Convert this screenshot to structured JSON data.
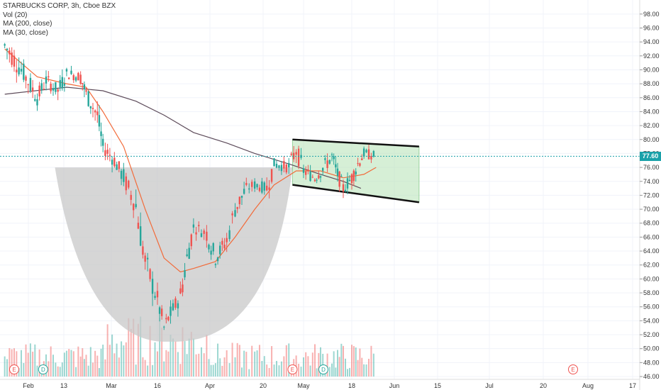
{
  "legend": {
    "title": "STARBUCKS CORP, 3h, Cboe BZX",
    "vol": "Vol (20)",
    "ma200": "MA (200, close)",
    "ma30": "MA (30, close)"
  },
  "current_price": "77.60",
  "colors": {
    "up": "#26a69a",
    "down": "#ef5350",
    "ma30": "#f26b3a",
    "ma200": "#5d4b5a",
    "cup": "#c8c8c8",
    "channel_fill": "#b6e3b6",
    "price_line": "#1aa1a9"
  },
  "events": [
    {
      "label": "E",
      "x_date": "Jan 29",
      "kind": "earnings"
    },
    {
      "label": "D",
      "x_date": "Feb 6",
      "kind": "dividend"
    },
    {
      "label": "E",
      "x_date": "Apr 28",
      "kind": "earnings"
    },
    {
      "label": "D",
      "x_date": "May 8",
      "kind": "dividend"
    },
    {
      "label": "E",
      "x_date": "Jul 28",
      "kind": "earnings"
    }
  ],
  "chart_data": {
    "type": "candlestick",
    "ylim": [
      46,
      99
    ],
    "y_ticks": [
      "46.00",
      "48.00",
      "50.00",
      "52.00",
      "54.00",
      "56.00",
      "58.00",
      "60.00",
      "62.00",
      "64.00",
      "66.00",
      "68.00",
      "70.00",
      "72.00",
      "74.00",
      "76.00",
      "78.00",
      "80.00",
      "82.00",
      "84.00",
      "86.00",
      "88.00",
      "90.00",
      "92.00",
      "94.00",
      "96.00",
      "98.00"
    ],
    "x_ticks": [
      "Feb",
      "13",
      "Mar",
      "16",
      "Apr",
      "20",
      "May",
      "18",
      "Jun",
      "15",
      "Jul",
      "20",
      "Aug",
      "17"
    ],
    "close_series": [
      {
        "date": "Jan 27",
        "close": 93.5
      },
      {
        "date": "Jan 31",
        "close": 89.5
      },
      {
        "date": "Feb 4",
        "close": 86.0
      },
      {
        "date": "Feb 7",
        "close": 88.5
      },
      {
        "date": "Feb 11",
        "close": 87.0
      },
      {
        "date": "Feb 14",
        "close": 89.5
      },
      {
        "date": "Feb 19",
        "close": 89.0
      },
      {
        "date": "Feb 21",
        "close": 86.5
      },
      {
        "date": "Feb 25",
        "close": 83.5
      },
      {
        "date": "Feb 27",
        "close": 79.0
      },
      {
        "date": "Mar 2",
        "close": 77.0
      },
      {
        "date": "Mar 5",
        "close": 74.5
      },
      {
        "date": "Mar 9",
        "close": 70.5
      },
      {
        "date": "Mar 12",
        "close": 62.5
      },
      {
        "date": "Mar 16",
        "close": 57.0
      },
      {
        "date": "Mar 18",
        "close": 53.0
      },
      {
        "date": "Mar 20",
        "close": 55.0
      },
      {
        "date": "Mar 23",
        "close": 57.5
      },
      {
        "date": "Mar 25",
        "close": 63.0
      },
      {
        "date": "Mar 27",
        "close": 67.5
      },
      {
        "date": "Mar 31",
        "close": 66.5
      },
      {
        "date": "Apr 3",
        "close": 63.0
      },
      {
        "date": "Apr 7",
        "close": 65.5
      },
      {
        "date": "Apr 10",
        "close": 70.0
      },
      {
        "date": "Apr 14",
        "close": 73.0
      },
      {
        "date": "Apr 17",
        "close": 73.5
      },
      {
        "date": "Apr 21",
        "close": 73.0
      },
      {
        "date": "Apr 23",
        "close": 76.5
      },
      {
        "date": "Apr 27",
        "close": 76.0
      },
      {
        "date": "Apr 29",
        "close": 78.5
      },
      {
        "date": "May 1",
        "close": 75.5
      },
      {
        "date": "May 5",
        "close": 74.5
      },
      {
        "date": "May 7",
        "close": 75.5
      },
      {
        "date": "May 11",
        "close": 77.5
      },
      {
        "date": "May 13",
        "close": 75.0
      },
      {
        "date": "May 15",
        "close": 73.0
      },
      {
        "date": "May 18",
        "close": 74.5
      },
      {
        "date": "May 20",
        "close": 76.5
      },
      {
        "date": "May 22",
        "close": 78.0
      },
      {
        "date": "May 26",
        "close": 77.6
      }
    ],
    "ma30": [
      {
        "date": "Jan 27",
        "value": 93.0
      },
      {
        "date": "Feb 4",
        "value": 89.0
      },
      {
        "date": "Feb 14",
        "value": 88.0
      },
      {
        "date": "Feb 21",
        "value": 87.5
      },
      {
        "date": "Feb 27",
        "value": 84.0
      },
      {
        "date": "Mar 5",
        "value": 79.0
      },
      {
        "date": "Mar 12",
        "value": 70.0
      },
      {
        "date": "Mar 18",
        "value": 63.0
      },
      {
        "date": "Mar 23",
        "value": 61.0
      },
      {
        "date": "Mar 27",
        "value": 61.5
      },
      {
        "date": "Apr 3",
        "value": 62.5
      },
      {
        "date": "Apr 10",
        "value": 66.0
      },
      {
        "date": "Apr 17",
        "value": 70.0
      },
      {
        "date": "Apr 23",
        "value": 73.5
      },
      {
        "date": "Apr 29",
        "value": 75.5
      },
      {
        "date": "May 7",
        "value": 75.5
      },
      {
        "date": "May 15",
        "value": 74.5
      },
      {
        "date": "May 22",
        "value": 75.0
      },
      {
        "date": "May 26",
        "value": 76.0
      }
    ],
    "ma200": [
      {
        "date": "Jan 27",
        "value": 86.5
      },
      {
        "date": "Feb 14",
        "value": 87.5
      },
      {
        "date": "Feb 27",
        "value": 87.0
      },
      {
        "date": "Mar 9",
        "value": 85.5
      },
      {
        "date": "Mar 18",
        "value": 83.5
      },
      {
        "date": "Mar 27",
        "value": 81.0
      },
      {
        "date": "Apr 7",
        "value": 79.5
      },
      {
        "date": "Apr 17",
        "value": 78.0
      },
      {
        "date": "Apr 27",
        "value": 76.5
      },
      {
        "date": "May 7",
        "value": 75.0
      },
      {
        "date": "May 15",
        "value": 74.0
      },
      {
        "date": "May 21",
        "value": 73.0
      }
    ],
    "channel": {
      "top": [
        {
          "date": "Apr 28",
          "value": 80.0
        },
        {
          "date": "Jun 9",
          "value": 79.0
        }
      ],
      "bottom": [
        {
          "date": "Apr 28",
          "value": 73.5
        },
        {
          "date": "Jun 9",
          "value": 71.0
        }
      ]
    },
    "cup": {
      "rim_left": {
        "date": "Feb 10",
        "value": 76.0
      },
      "rim_right": {
        "date": "Apr 28",
        "value": 76.0
      },
      "bottom": {
        "date": "Mar 18",
        "value": 51.0
      }
    },
    "volume": "relative bars at bottom, 0-1 scale",
    "grid": true,
    "legend_position": "top-left"
  }
}
